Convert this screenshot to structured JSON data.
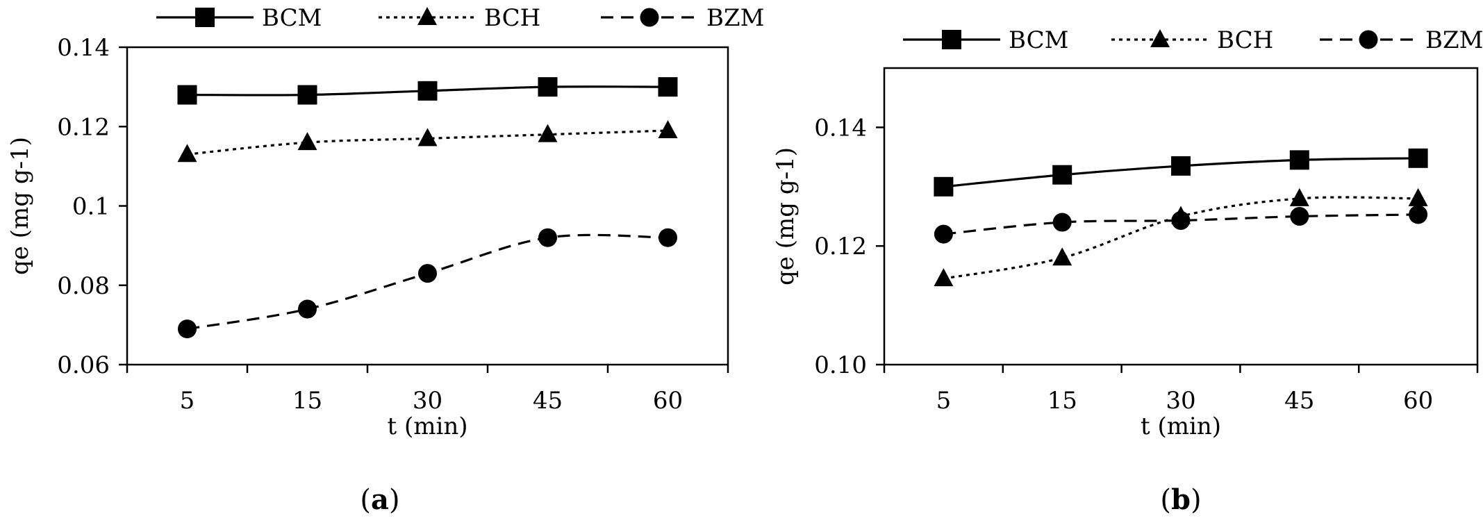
{
  "chart_data": [
    {
      "type": "line",
      "panel_label": "a",
      "xlabel": "t (min)",
      "ylabel": "qe (mg g-1)",
      "categories": [
        "5",
        "15",
        "30",
        "45",
        "60"
      ],
      "ylim": [
        0.06,
        0.14
      ],
      "yticks": [
        "0.06",
        "0.08",
        "0.1",
        "0.12",
        "0.14"
      ],
      "yticks_values": [
        0.06,
        0.08,
        0.1,
        0.12,
        0.14
      ],
      "grid": false,
      "legend": "top",
      "series": [
        {
          "name": "BCM",
          "marker": "square",
          "line": "solid",
          "values": [
            0.128,
            0.128,
            0.129,
            0.13,
            0.13
          ]
        },
        {
          "name": "BCH",
          "marker": "triangle",
          "line": "dotted",
          "values": [
            0.113,
            0.116,
            0.117,
            0.118,
            0.119
          ]
        },
        {
          "name": "BZM",
          "marker": "circle",
          "line": "dashed",
          "values": [
            0.069,
            0.074,
            0.083,
            0.092,
            0.092
          ]
        }
      ]
    },
    {
      "type": "line",
      "panel_label": "b",
      "xlabel": "t (min)",
      "ylabel": "qe (mg g-1)",
      "categories": [
        "5",
        "15",
        "30",
        "45",
        "60"
      ],
      "ylim": [
        0.1,
        0.15
      ],
      "yticks": [
        "0.10",
        "0.12",
        "0.14"
      ],
      "yticks_values": [
        0.1,
        0.12,
        0.14
      ],
      "grid": false,
      "legend": "top",
      "series": [
        {
          "name": "BCM",
          "marker": "square",
          "line": "solid",
          "values": [
            0.13,
            0.132,
            0.1335,
            0.1345,
            0.1348
          ]
        },
        {
          "name": "BCH",
          "marker": "triangle",
          "line": "dotted",
          "values": [
            0.1145,
            0.118,
            0.125,
            0.128,
            0.128
          ]
        },
        {
          "name": "BZM",
          "marker": "circle",
          "line": "dashed",
          "values": [
            0.122,
            0.124,
            0.1243,
            0.125,
            0.1253
          ]
        }
      ]
    }
  ],
  "colors": {
    "ink": "#000000",
    "background": "#ffffff"
  }
}
